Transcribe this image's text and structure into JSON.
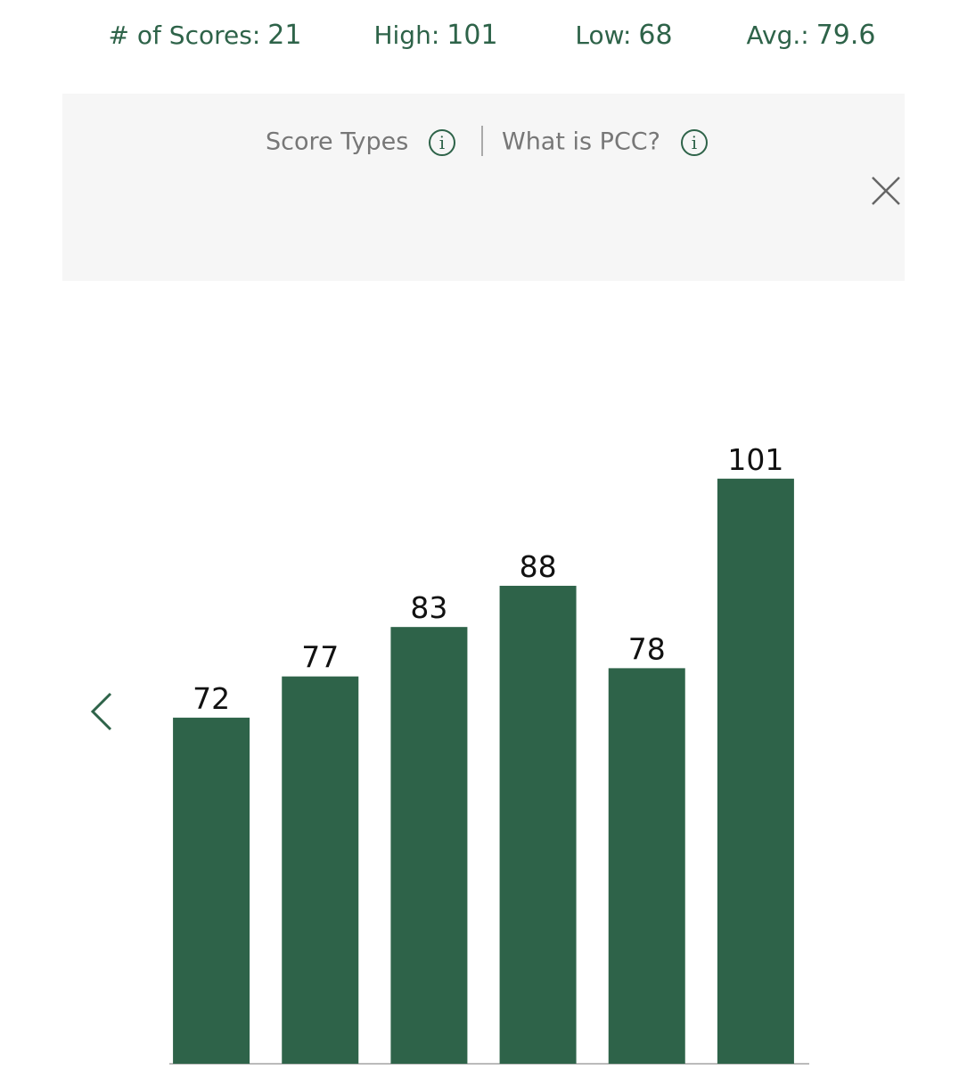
{
  "stats": [
    {
      "label": "# of Scores:",
      "value": 21
    },
    {
      "label": "High:",
      "value": 101
    },
    {
      "label": "Low:",
      "value": 68
    },
    {
      "label": "Avg.:",
      "value": 79.6
    }
  ],
  "links": [
    "Score Types",
    "What is PCC?"
  ],
  "chart_data": {
    "type": "bar",
    "values": [
      72,
      77,
      83,
      88,
      78,
      101
    ],
    "color": "#2e6349",
    "ylim": [
      30,
      125
    ]
  }
}
